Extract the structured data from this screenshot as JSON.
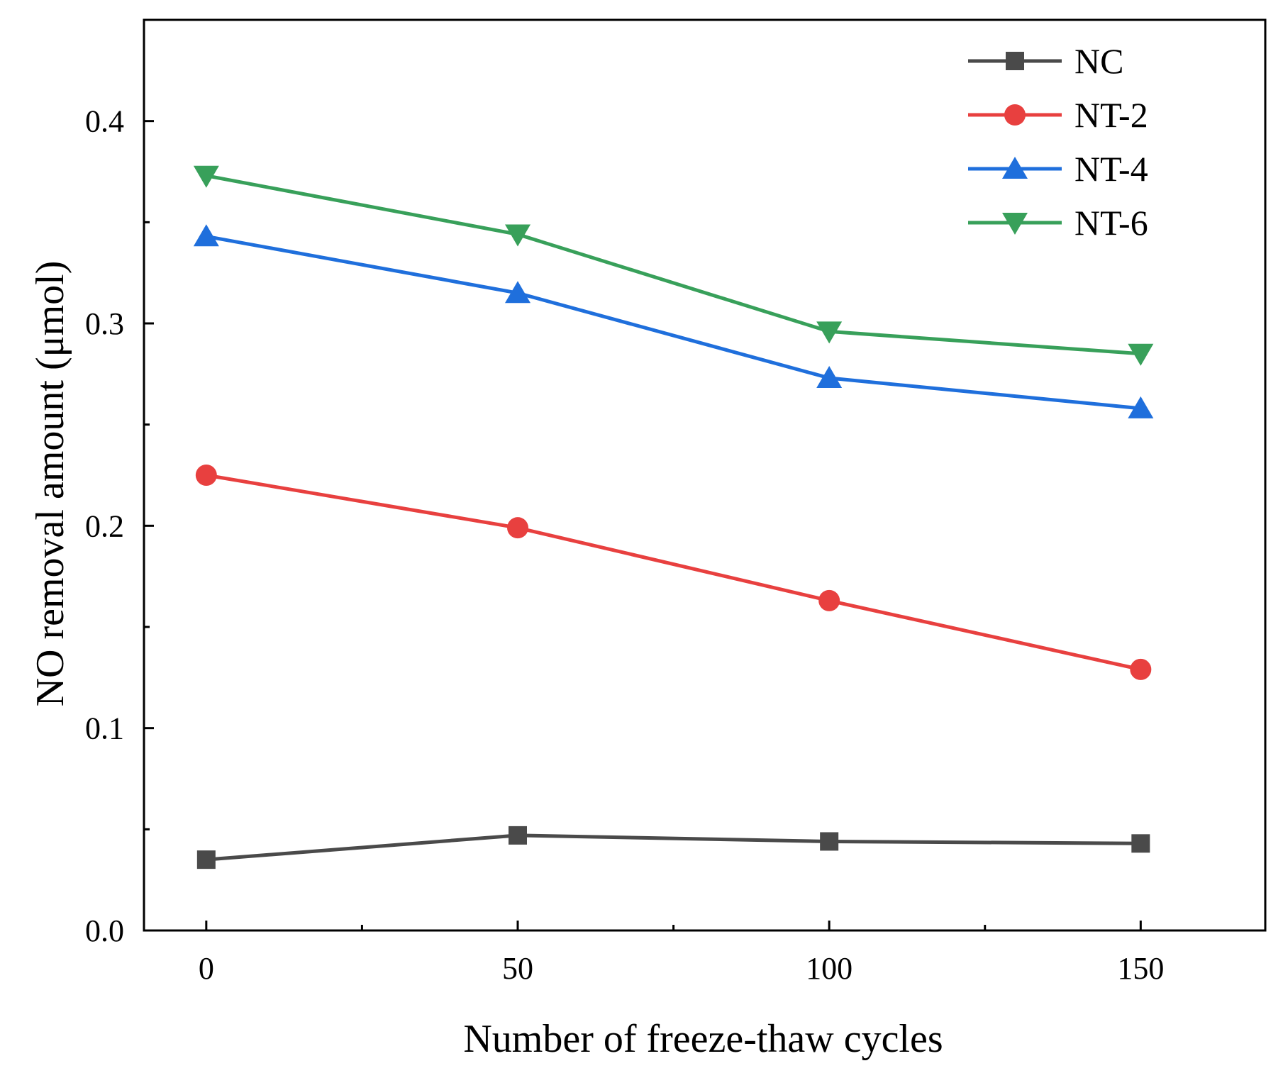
{
  "chart_data": {
    "type": "line",
    "title": "",
    "xlabel": "Number of freeze-thaw cycles",
    "ylabel": "NO removal amount (μmol)",
    "x": [
      0,
      50,
      100,
      150
    ],
    "xlim": [
      -10,
      170
    ],
    "ylim": [
      0.0,
      0.45
    ],
    "x_ticks": [
      0,
      50,
      100,
      150
    ],
    "x_tick_labels": [
      "0",
      "50",
      "100",
      "150"
    ],
    "x_minor_ticks": [
      25,
      75,
      125
    ],
    "y_ticks": [
      0.0,
      0.1,
      0.2,
      0.3,
      0.4
    ],
    "y_tick_labels": [
      "0.0",
      "0.1",
      "0.2",
      "0.3",
      "0.4"
    ],
    "y_minor_ticks": [
      0.05,
      0.15,
      0.25,
      0.35
    ],
    "grid": false,
    "legend_position": "top-right",
    "series": [
      {
        "name": "NC",
        "marker": "square",
        "color": "#4a4a4a",
        "values": [
          0.035,
          0.047,
          0.044,
          0.043
        ]
      },
      {
        "name": "NT-2",
        "marker": "circle",
        "color": "#e8403f",
        "values": [
          0.225,
          0.199,
          0.163,
          0.129
        ]
      },
      {
        "name": "NT-4",
        "marker": "triangle-up",
        "color": "#1f6fdc",
        "values": [
          0.343,
          0.315,
          0.273,
          0.258
        ]
      },
      {
        "name": "NT-6",
        "marker": "triangle-down",
        "color": "#38a05a",
        "values": [
          0.373,
          0.344,
          0.296,
          0.285
        ]
      }
    ]
  }
}
